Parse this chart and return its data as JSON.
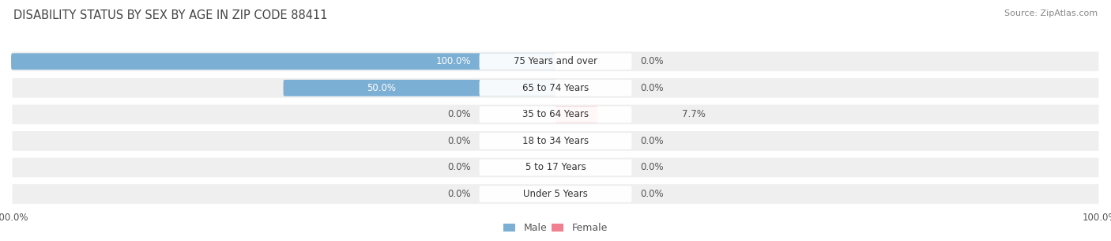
{
  "title": "DISABILITY STATUS BY SEX BY AGE IN ZIP CODE 88411",
  "source": "Source: ZipAtlas.com",
  "categories": [
    "Under 5 Years",
    "5 to 17 Years",
    "18 to 34 Years",
    "35 to 64 Years",
    "65 to 74 Years",
    "75 Years and over"
  ],
  "male_values": [
    0.0,
    0.0,
    0.0,
    0.0,
    50.0,
    100.0
  ],
  "female_values": [
    0.0,
    0.0,
    0.0,
    7.7,
    0.0,
    0.0
  ],
  "male_color": "#7bafd4",
  "female_color": "#f08090",
  "row_bg_color": "#efefef",
  "max_val": 100.0,
  "title_fontsize": 10.5,
  "axis_fontsize": 8.5,
  "label_fontsize": 8.5,
  "value_fontsize": 8.5,
  "legend_fontsize": 9,
  "background_color": "#ffffff"
}
